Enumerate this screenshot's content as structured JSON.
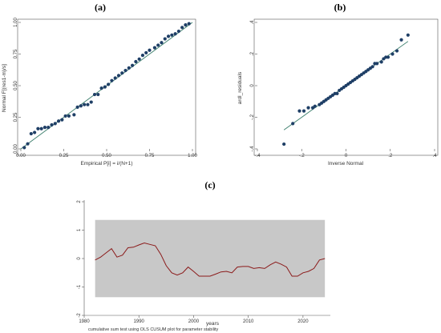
{
  "chart_data": [
    {
      "panel_label": "(a)",
      "type": "scatter",
      "xlabel": "Empirical P[i] = i/(N+1)",
      "ylabel": "Normal F[(res1-m)/s]",
      "xlim": [
        0,
        1
      ],
      "ylim": [
        0,
        1
      ],
      "x_ticks": [
        "0.00",
        "0.25",
        "0.50",
        "0.75",
        "1.00"
      ],
      "y_ticks": [
        "0.00",
        "0.25",
        "0.50",
        "0.75",
        "1.00"
      ],
      "reference_line": [
        [
          0,
          0
        ],
        [
          1,
          1
        ]
      ],
      "colors": {
        "points": "#1f3f66",
        "line": "#3a7d6b"
      },
      "points": [
        [
          0.02,
          0.01
        ],
        [
          0.04,
          0.04
        ],
        [
          0.06,
          0.12
        ],
        [
          0.08,
          0.13
        ],
        [
          0.1,
          0.16
        ],
        [
          0.12,
          0.16
        ],
        [
          0.14,
          0.17
        ],
        [
          0.16,
          0.17
        ],
        [
          0.18,
          0.19
        ],
        [
          0.2,
          0.2
        ],
        [
          0.22,
          0.22
        ],
        [
          0.24,
          0.23
        ],
        [
          0.26,
          0.26
        ],
        [
          0.28,
          0.26
        ],
        [
          0.31,
          0.27
        ],
        [
          0.33,
          0.33
        ],
        [
          0.35,
          0.34
        ],
        [
          0.37,
          0.35
        ],
        [
          0.39,
          0.35
        ],
        [
          0.41,
          0.37
        ],
        [
          0.43,
          0.43
        ],
        [
          0.45,
          0.43
        ],
        [
          0.47,
          0.48
        ],
        [
          0.49,
          0.49
        ],
        [
          0.51,
          0.51
        ],
        [
          0.53,
          0.54
        ],
        [
          0.55,
          0.56
        ],
        [
          0.57,
          0.58
        ],
        [
          0.59,
          0.6
        ],
        [
          0.61,
          0.62
        ],
        [
          0.63,
          0.64
        ],
        [
          0.65,
          0.66
        ],
        [
          0.67,
          0.69
        ],
        [
          0.69,
          0.71
        ],
        [
          0.71,
          0.74
        ],
        [
          0.73,
          0.76
        ],
        [
          0.75,
          0.78
        ],
        [
          0.78,
          0.8
        ],
        [
          0.8,
          0.82
        ],
        [
          0.82,
          0.84
        ],
        [
          0.84,
          0.87
        ],
        [
          0.86,
          0.89
        ],
        [
          0.88,
          0.9
        ],
        [
          0.9,
          0.91
        ],
        [
          0.92,
          0.93
        ],
        [
          0.94,
          0.96
        ],
        [
          0.96,
          0.98
        ],
        [
          0.98,
          0.99
        ]
      ]
    },
    {
      "panel_label": "(b)",
      "type": "scatter",
      "xlabel": "Inverse Normal",
      "ylabel": "ardl_residuals",
      "xlim": [
        -0.4,
        0.4
      ],
      "ylim": [
        -0.4,
        0.4
      ],
      "x_ticks": [
        "-.4",
        "-.2",
        "0",
        ".2",
        ".4"
      ],
      "y_ticks": [
        "-.4",
        "-.2",
        "0",
        ".2",
        ".4"
      ],
      "reference_line": [
        [
          -0.28,
          -0.28
        ],
        [
          0.28,
          0.28
        ]
      ],
      "colors": {
        "points": "#1f3f66",
        "line": "#3a7d6b"
      },
      "points": [
        [
          -0.28,
          -0.37
        ],
        [
          -0.24,
          -0.24
        ],
        [
          -0.21,
          -0.16
        ],
        [
          -0.19,
          -0.16
        ],
        [
          -0.17,
          -0.14
        ],
        [
          -0.15,
          -0.14
        ],
        [
          -0.14,
          -0.13
        ],
        [
          -0.12,
          -0.12
        ],
        [
          -0.11,
          -0.11
        ],
        [
          -0.1,
          -0.1
        ],
        [
          -0.09,
          -0.09
        ],
        [
          -0.08,
          -0.08
        ],
        [
          -0.07,
          -0.07
        ],
        [
          -0.06,
          -0.06
        ],
        [
          -0.05,
          -0.05
        ],
        [
          -0.04,
          -0.05
        ],
        [
          -0.03,
          -0.03
        ],
        [
          -0.02,
          -0.02
        ],
        [
          -0.01,
          -0.01
        ],
        [
          0.0,
          0.0
        ],
        [
          0.01,
          0.01
        ],
        [
          0.02,
          0.02
        ],
        [
          0.03,
          0.03
        ],
        [
          0.04,
          0.04
        ],
        [
          0.05,
          0.05
        ],
        [
          0.06,
          0.06
        ],
        [
          0.07,
          0.07
        ],
        [
          0.08,
          0.08
        ],
        [
          0.09,
          0.09
        ],
        [
          0.1,
          0.1
        ],
        [
          0.11,
          0.11
        ],
        [
          0.12,
          0.12
        ],
        [
          0.13,
          0.14
        ],
        [
          0.14,
          0.14
        ],
        [
          0.16,
          0.15
        ],
        [
          0.17,
          0.17
        ],
        [
          0.18,
          0.18
        ],
        [
          0.19,
          0.18
        ],
        [
          0.21,
          0.2
        ],
        [
          0.23,
          0.22
        ],
        [
          0.25,
          0.29
        ],
        [
          0.28,
          0.32
        ]
      ]
    },
    {
      "panel_label": "(c)",
      "type": "line",
      "xlabel": "years",
      "caption": "cumulative sum test using OLS CUSUM plot for parameter stability",
      "xlim": [
        1980,
        2025
      ],
      "ylim": [
        -2,
        2
      ],
      "x_ticks": [
        "1980",
        "1990",
        "2000",
        "2010",
        "2020"
      ],
      "y_ticks": [
        "-2",
        "-1",
        "0",
        "1",
        "2"
      ],
      "band": [
        -1.36,
        1.36
      ],
      "colors": {
        "band": "#c8c8c8",
        "line": "#8b1a1a"
      },
      "x": [
        1982,
        1983,
        1984,
        1985,
        1986,
        1987,
        1988,
        1989,
        1990,
        1991,
        1992,
        1993,
        1994,
        1995,
        1996,
        1997,
        1998,
        1999,
        2000,
        2001,
        2002,
        2003,
        2004,
        2005,
        2006,
        2007,
        2008,
        2009,
        2010,
        2011,
        2012,
        2013,
        2014,
        2015,
        2016,
        2017,
        2018,
        2019,
        2020,
        2021,
        2022,
        2023,
        2024
      ],
      "values": [
        -0.05,
        0.05,
        0.2,
        0.35,
        0.05,
        0.12,
        0.38,
        0.4,
        0.48,
        0.55,
        0.5,
        0.45,
        0.15,
        -0.25,
        -0.5,
        -0.58,
        -0.5,
        -0.3,
        -0.45,
        -0.62,
        -0.62,
        -0.62,
        -0.55,
        -0.47,
        -0.45,
        -0.5,
        -0.3,
        -0.28,
        -0.28,
        -0.35,
        -0.32,
        -0.35,
        -0.22,
        -0.12,
        -0.2,
        -0.3,
        -0.62,
        -0.62,
        -0.5,
        -0.45,
        -0.35,
        -0.05,
        0.0
      ]
    }
  ]
}
